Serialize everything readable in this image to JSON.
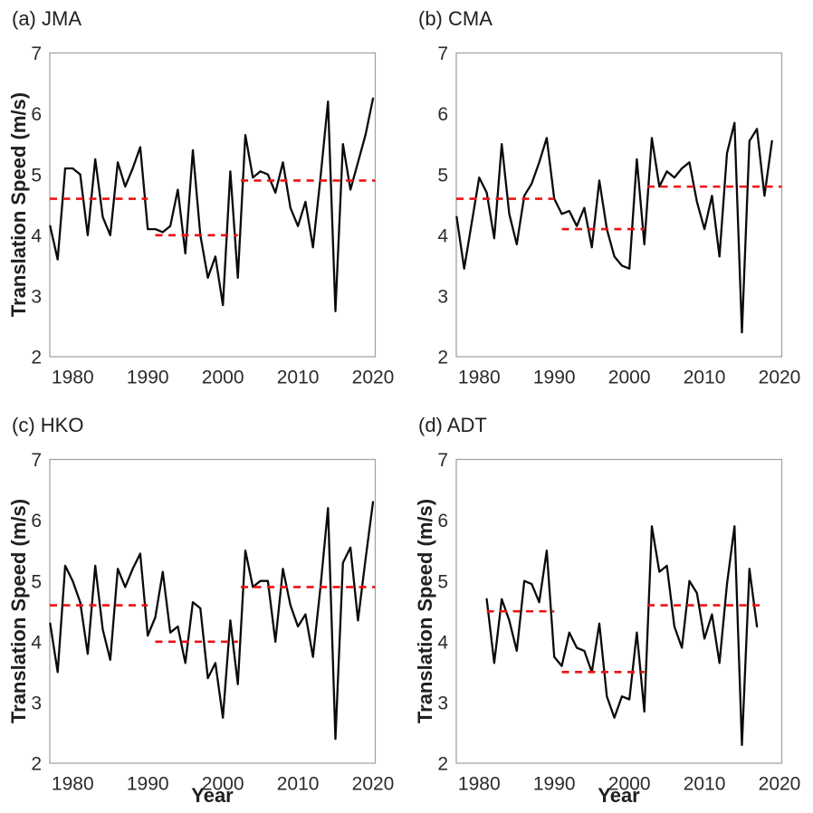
{
  "figure": {
    "kind": "multi-panel time series figure",
    "shared_y_axis_label": "Translation Speed (m/s)",
    "shared_x_axis_label": "Year"
  },
  "style": {
    "series_color": "#0a0a0a",
    "mean_line_color": "#ee1111",
    "axis_frame_color": "#a3a3a3",
    "text_color": "#2b2b2b",
    "background": "#ffffff"
  },
  "axes": {
    "xlim": [
      1976.95,
      2020.3
    ],
    "ylim": [
      2,
      7
    ],
    "xticks": [
      1980,
      1990,
      2000,
      2010,
      2020
    ],
    "yticks": [
      2,
      3,
      4,
      5,
      6,
      7
    ],
    "grid": false
  },
  "chart_data": [
    {
      "type": "line",
      "title": "(a) JMA",
      "ylabel": "Translation Speed (m/s)",
      "years": [
        1977,
        1978,
        1979,
        1980,
        1981,
        1982,
        1983,
        1984,
        1985,
        1986,
        1987,
        1988,
        1989,
        1990,
        1991,
        1992,
        1993,
        1994,
        1995,
        1996,
        1997,
        1998,
        1999,
        2000,
        2001,
        2002,
        2003,
        2004,
        2005,
        2006,
        2007,
        2008,
        2009,
        2010,
        2011,
        2012,
        2013,
        2014,
        2015,
        2016,
        2017,
        2018,
        2019,
        2020
      ],
      "values": [
        4.15,
        3.6,
        5.1,
        5.1,
        5.0,
        4.0,
        5.25,
        4.3,
        4.0,
        5.2,
        4.8,
        5.1,
        5.45,
        4.1,
        4.1,
        4.05,
        4.15,
        4.75,
        3.7,
        5.4,
        4.0,
        3.3,
        3.65,
        2.85,
        5.05,
        3.3,
        5.65,
        4.95,
        5.05,
        5.0,
        4.7,
        5.2,
        4.45,
        4.15,
        4.55,
        3.8,
        4.95,
        6.2,
        2.75,
        5.5,
        4.75,
        5.2,
        5.65,
        6.25
      ],
      "mean_segments": [
        {
          "start_year": 1976.95,
          "end_year": 1990,
          "value": 4.6
        },
        {
          "start_year": 1991,
          "end_year": 2002,
          "value": 4.0
        },
        {
          "start_year": 2002.4,
          "end_year": 2020.3,
          "value": 4.9
        }
      ]
    },
    {
      "type": "line",
      "title": "(b) CMA",
      "years": [
        1977,
        1978,
        1979,
        1980,
        1981,
        1982,
        1983,
        1984,
        1985,
        1986,
        1987,
        1988,
        1989,
        1990,
        1991,
        1992,
        1993,
        1994,
        1995,
        1996,
        1997,
        1998,
        1999,
        2000,
        2001,
        2002,
        2003,
        2004,
        2005,
        2006,
        2007,
        2008,
        2009,
        2010,
        2011,
        2012,
        2013,
        2014,
        2015,
        2016,
        2017,
        2018,
        2019
      ],
      "values": [
        4.3,
        3.45,
        4.2,
        4.95,
        4.7,
        3.95,
        5.5,
        4.35,
        3.85,
        4.65,
        4.85,
        5.2,
        5.6,
        4.6,
        4.35,
        4.4,
        4.15,
        4.45,
        3.8,
        4.9,
        4.1,
        3.65,
        3.5,
        3.45,
        5.25,
        3.85,
        5.6,
        4.8,
        5.05,
        4.95,
        5.1,
        5.2,
        4.55,
        4.1,
        4.65,
        3.65,
        5.35,
        5.85,
        2.4,
        5.55,
        5.75,
        4.65,
        5.55
      ],
      "mean_segments": [
        {
          "start_year": 1976.95,
          "end_year": 1990,
          "value": 4.6
        },
        {
          "start_year": 1991,
          "end_year": 2002,
          "value": 4.1
        },
        {
          "start_year": 2002.4,
          "end_year": 2020.3,
          "value": 4.8
        }
      ]
    },
    {
      "type": "line",
      "title": "(c) HKO",
      "ylabel": "Translation Speed (m/s)",
      "xlabel": "Year",
      "years": [
        1977,
        1978,
        1979,
        1980,
        1981,
        1982,
        1983,
        1984,
        1985,
        1986,
        1987,
        1988,
        1989,
        1990,
        1991,
        1992,
        1993,
        1994,
        1995,
        1996,
        1997,
        1998,
        1999,
        2000,
        2001,
        2002,
        2003,
        2004,
        2005,
        2006,
        2007,
        2008,
        2009,
        2010,
        2011,
        2012,
        2013,
        2014,
        2015,
        2016,
        2017,
        2018,
        2019,
        2020
      ],
      "values": [
        4.3,
        3.5,
        5.25,
        5.0,
        4.65,
        3.8,
        5.25,
        4.2,
        3.7,
        5.2,
        4.9,
        5.2,
        5.45,
        4.1,
        4.4,
        5.15,
        4.15,
        4.25,
        3.65,
        4.65,
        4.55,
        3.4,
        3.65,
        2.75,
        4.35,
        3.3,
        5.5,
        4.9,
        5.0,
        5.0,
        4.0,
        5.2,
        4.6,
        4.25,
        4.45,
        3.75,
        4.9,
        6.2,
        2.4,
        5.3,
        5.55,
        4.35,
        5.35,
        6.3
      ],
      "mean_segments": [
        {
          "start_year": 1976.95,
          "end_year": 1990,
          "value": 4.6
        },
        {
          "start_year": 1991,
          "end_year": 2002,
          "value": 4.0
        },
        {
          "start_year": 2002.4,
          "end_year": 2020.3,
          "value": 4.9
        }
      ]
    },
    {
      "type": "line",
      "title": "(d) ADT",
      "ylabel": "Translation Speed (m/s)",
      "xlabel": "Year",
      "years": [
        1981,
        1982,
        1983,
        1984,
        1985,
        1986,
        1987,
        1988,
        1989,
        1990,
        1991,
        1992,
        1993,
        1994,
        1995,
        1996,
        1997,
        1998,
        1999,
        2000,
        2001,
        2002,
        2003,
        2004,
        2005,
        2006,
        2007,
        2008,
        2009,
        2010,
        2011,
        2012,
        2013,
        2014,
        2015,
        2016,
        2017
      ],
      "values": [
        4.7,
        3.65,
        4.7,
        4.35,
        3.85,
        5.0,
        4.95,
        4.65,
        5.5,
        3.75,
        3.6,
        4.15,
        3.9,
        3.85,
        3.5,
        4.3,
        3.1,
        2.75,
        3.1,
        3.05,
        4.15,
        2.85,
        5.9,
        5.15,
        5.25,
        4.25,
        3.9,
        5.0,
        4.8,
        4.05,
        4.45,
        3.65,
        4.95,
        5.9,
        2.3,
        5.2,
        4.25
      ],
      "mean_segments": [
        {
          "start_year": 1981,
          "end_year": 1990,
          "value": 4.5
        },
        {
          "start_year": 1991,
          "end_year": 2002,
          "value": 3.5
        },
        {
          "start_year": 2002.4,
          "end_year": 2017.5,
          "value": 4.6
        }
      ]
    }
  ]
}
